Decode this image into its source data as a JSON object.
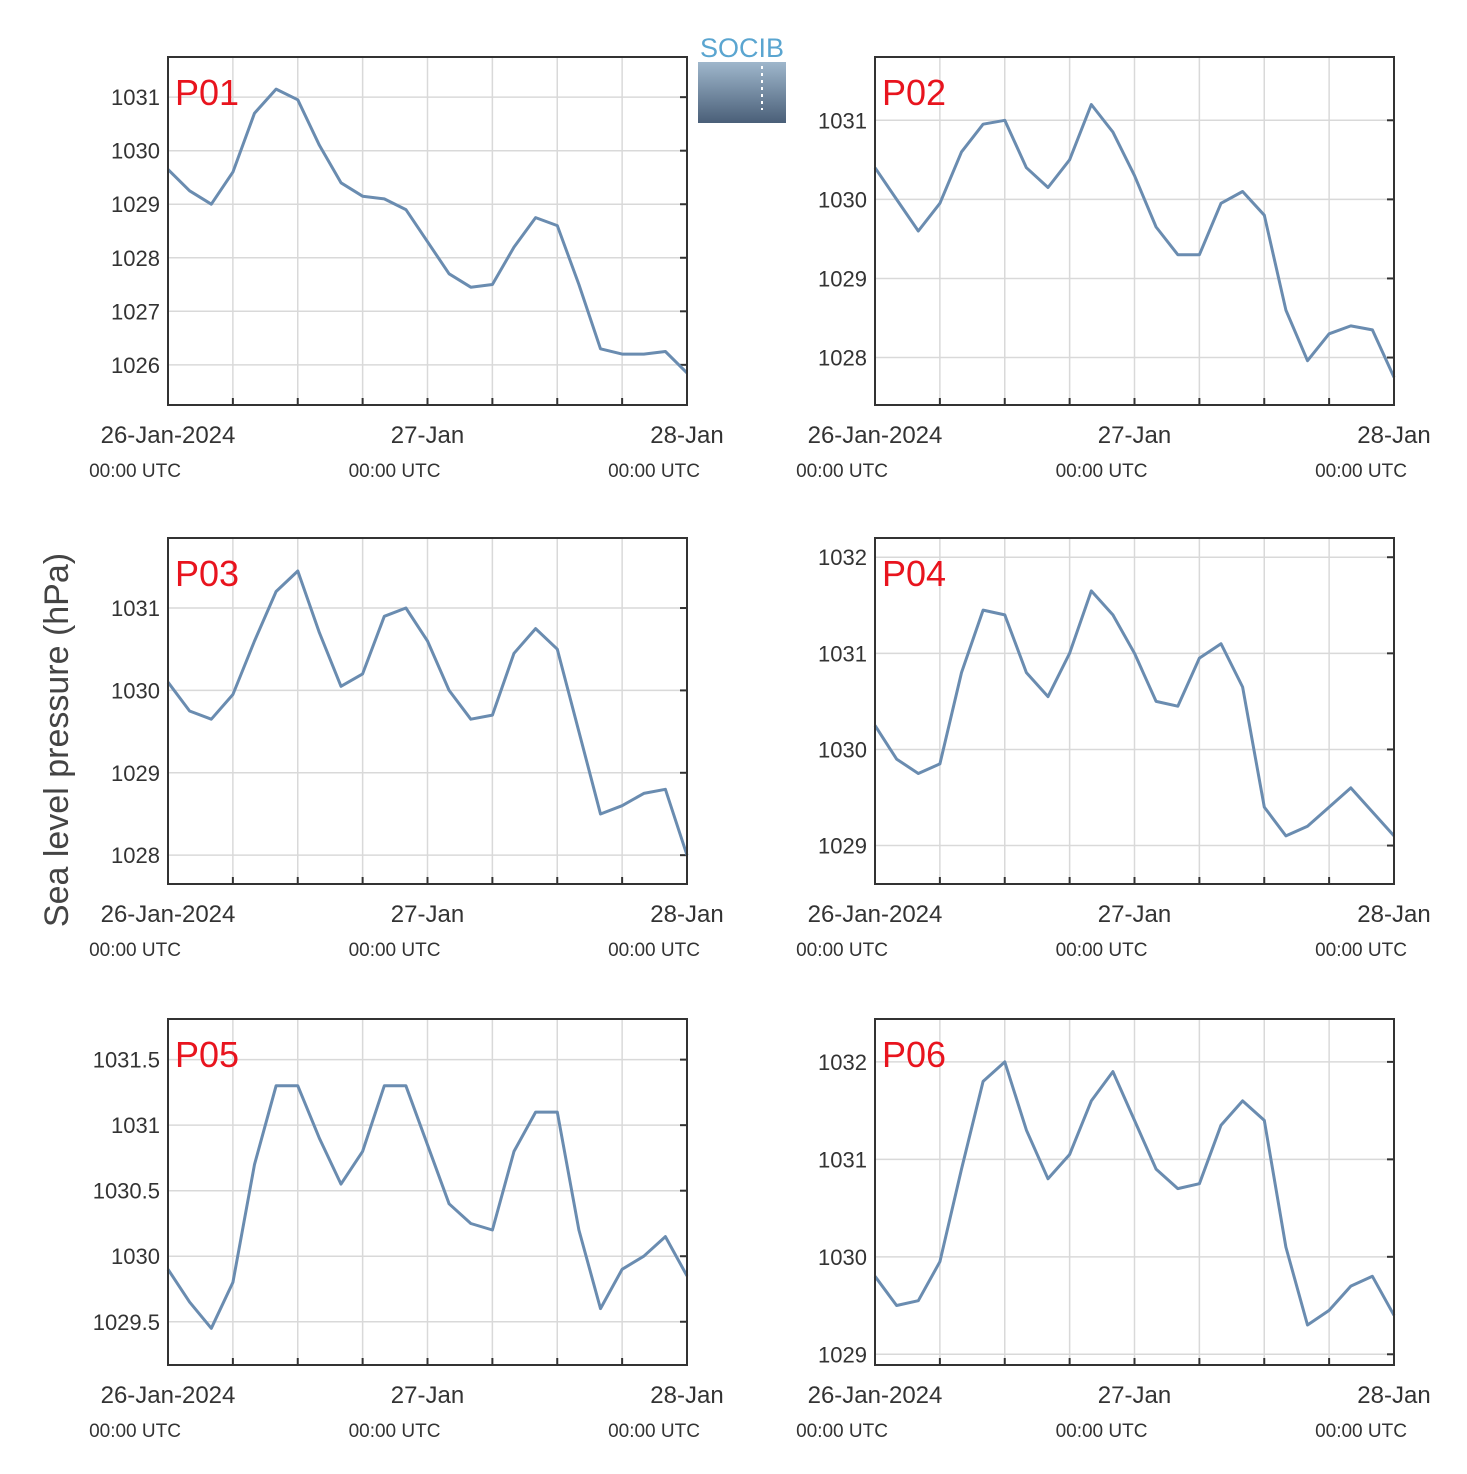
{
  "ylabel": "Sea level pressure (hPa)",
  "logo": "SOCIB",
  "chart_data": [
    {
      "type": "line",
      "title": "P01",
      "color": "#6a8cb0",
      "grid": true,
      "x": [
        "2024-01-26T00:00",
        "2024-01-26T02:00",
        "2024-01-26T04:00",
        "2024-01-26T06:00",
        "2024-01-26T08:00",
        "2024-01-26T10:00",
        "2024-01-26T12:00",
        "2024-01-26T14:00",
        "2024-01-26T16:00",
        "2024-01-26T18:00",
        "2024-01-26T20:00",
        "2024-01-26T22:00",
        "2024-01-27T00:00",
        "2024-01-27T02:00",
        "2024-01-27T04:00",
        "2024-01-27T06:00",
        "2024-01-27T08:00",
        "2024-01-27T10:00",
        "2024-01-27T12:00",
        "2024-01-27T14:00",
        "2024-01-27T16:00",
        "2024-01-27T18:00",
        "2024-01-27T20:00",
        "2024-01-27T22:00",
        "2024-01-28T00:00"
      ],
      "values": [
        1029.65,
        1029.25,
        1029.0,
        1029.6,
        1030.7,
        1031.15,
        1030.95,
        1030.1,
        1029.4,
        1029.15,
        1029.1,
        1028.9,
        1028.3,
        1027.7,
        1027.45,
        1027.5,
        1028.2,
        1028.75,
        1028.6,
        1027.5,
        1026.3,
        1026.2,
        1026.2,
        1026.25,
        1025.85
      ],
      "xlim": [
        "2024-01-26T00:00",
        "2024-01-28T00:00"
      ],
      "xticks": [
        {
          "value": "2024-01-26T00:00",
          "label": "26-Jan-2024"
        },
        {
          "value": "2024-01-27T00:00",
          "label": "27-Jan"
        },
        {
          "value": "2024-01-28T00:00",
          "label": "28-Jan"
        }
      ],
      "xtick_sublabel": "00:00 UTC",
      "xminorticks": [
        "2024-01-26T06:00",
        "2024-01-26T12:00",
        "2024-01-26T18:00",
        "2024-01-27T06:00",
        "2024-01-27T12:00",
        "2024-01-27T18:00"
      ],
      "ylim": [
        1025.25,
        1031.75
      ],
      "yticks": [
        1026,
        1027,
        1028,
        1029,
        1030,
        1031
      ]
    },
    {
      "type": "line",
      "title": "P02",
      "color": "#6a8cb0",
      "grid": true,
      "x": [
        "2024-01-26T00:00",
        "2024-01-26T02:00",
        "2024-01-26T04:00",
        "2024-01-26T06:00",
        "2024-01-26T08:00",
        "2024-01-26T10:00",
        "2024-01-26T12:00",
        "2024-01-26T14:00",
        "2024-01-26T16:00",
        "2024-01-26T18:00",
        "2024-01-26T20:00",
        "2024-01-26T22:00",
        "2024-01-27T00:00",
        "2024-01-27T02:00",
        "2024-01-27T04:00",
        "2024-01-27T06:00",
        "2024-01-27T08:00",
        "2024-01-27T10:00",
        "2024-01-27T12:00",
        "2024-01-27T14:00",
        "2024-01-27T16:00",
        "2024-01-27T18:00",
        "2024-01-27T20:00",
        "2024-01-27T22:00",
        "2024-01-28T00:00"
      ],
      "values": [
        1030.4,
        1030.0,
        1029.6,
        1029.95,
        1030.6,
        1030.95,
        1031.0,
        1030.4,
        1030.15,
        1030.5,
        1031.2,
        1030.85,
        1030.3,
        1029.65,
        1029.3,
        1029.3,
        1029.95,
        1030.1,
        1029.8,
        1028.6,
        1027.96,
        1028.3,
        1028.4,
        1028.35,
        1027.75
      ],
      "xlim": [
        "2024-01-26T00:00",
        "2024-01-28T00:00"
      ],
      "xticks": [
        {
          "value": "2024-01-26T00:00",
          "label": "26-Jan-2024"
        },
        {
          "value": "2024-01-27T00:00",
          "label": "27-Jan"
        },
        {
          "value": "2024-01-28T00:00",
          "label": "28-Jan"
        }
      ],
      "xtick_sublabel": "00:00 UTC",
      "xminorticks": [
        "2024-01-26T06:00",
        "2024-01-26T12:00",
        "2024-01-26T18:00",
        "2024-01-27T06:00",
        "2024-01-27T12:00",
        "2024-01-27T18:00"
      ],
      "ylim": [
        1027.4,
        1031.8
      ],
      "yticks": [
        1028,
        1029,
        1030,
        1031
      ]
    },
    {
      "type": "line",
      "title": "P03",
      "color": "#6a8cb0",
      "grid": true,
      "x": [
        "2024-01-26T00:00",
        "2024-01-26T02:00",
        "2024-01-26T04:00",
        "2024-01-26T06:00",
        "2024-01-26T08:00",
        "2024-01-26T10:00",
        "2024-01-26T12:00",
        "2024-01-26T14:00",
        "2024-01-26T16:00",
        "2024-01-26T18:00",
        "2024-01-26T20:00",
        "2024-01-26T22:00",
        "2024-01-27T00:00",
        "2024-01-27T02:00",
        "2024-01-27T04:00",
        "2024-01-27T06:00",
        "2024-01-27T08:00",
        "2024-01-27T10:00",
        "2024-01-27T12:00",
        "2024-01-27T14:00",
        "2024-01-27T16:00",
        "2024-01-27T18:00",
        "2024-01-27T20:00",
        "2024-01-27T22:00",
        "2024-01-28T00:00"
      ],
      "values": [
        1030.1,
        1029.75,
        1029.65,
        1029.95,
        1030.6,
        1031.2,
        1031.45,
        1030.7,
        1030.05,
        1030.2,
        1030.9,
        1031.0,
        1030.6,
        1030.0,
        1029.65,
        1029.7,
        1030.45,
        1030.75,
        1030.5,
        1029.5,
        1028.5,
        1028.6,
        1028.75,
        1028.8,
        1028.0
      ],
      "xlim": [
        "2024-01-26T00:00",
        "2024-01-28T00:00"
      ],
      "xticks": [
        {
          "value": "2024-01-26T00:00",
          "label": "26-Jan-2024"
        },
        {
          "value": "2024-01-27T00:00",
          "label": "27-Jan"
        },
        {
          "value": "2024-01-28T00:00",
          "label": "28-Jan"
        }
      ],
      "xtick_sublabel": "00:00 UTC",
      "xminorticks": [
        "2024-01-26T06:00",
        "2024-01-26T12:00",
        "2024-01-26T18:00",
        "2024-01-27T06:00",
        "2024-01-27T12:00",
        "2024-01-27T18:00"
      ],
      "ylim": [
        1027.65,
        1031.85
      ],
      "yticks": [
        1028,
        1029,
        1030,
        1031
      ]
    },
    {
      "type": "line",
      "title": "P04",
      "color": "#6a8cb0",
      "grid": true,
      "x": [
        "2024-01-26T00:00",
        "2024-01-26T02:00",
        "2024-01-26T04:00",
        "2024-01-26T06:00",
        "2024-01-26T08:00",
        "2024-01-26T10:00",
        "2024-01-26T12:00",
        "2024-01-26T14:00",
        "2024-01-26T16:00",
        "2024-01-26T18:00",
        "2024-01-26T20:00",
        "2024-01-26T22:00",
        "2024-01-27T00:00",
        "2024-01-27T02:00",
        "2024-01-27T04:00",
        "2024-01-27T06:00",
        "2024-01-27T08:00",
        "2024-01-27T10:00",
        "2024-01-27T12:00",
        "2024-01-27T14:00",
        "2024-01-27T16:00",
        "2024-01-27T18:00",
        "2024-01-27T20:00",
        "2024-01-27T22:00",
        "2024-01-28T00:00"
      ],
      "values": [
        1030.25,
        1029.9,
        1029.75,
        1029.85,
        1030.8,
        1031.45,
        1031.4,
        1030.8,
        1030.55,
        1031.0,
        1031.65,
        1031.4,
        1031.0,
        1030.5,
        1030.45,
        1030.95,
        1031.1,
        1030.65,
        1029.4,
        1029.1,
        1029.2,
        1029.4,
        1029.6,
        1029.35,
        1029.1
      ],
      "xlim": [
        "2024-01-26T00:00",
        "2024-01-28T00:00"
      ],
      "xticks": [
        {
          "value": "2024-01-26T00:00",
          "label": "26-Jan-2024"
        },
        {
          "value": "2024-01-27T00:00",
          "label": "27-Jan"
        },
        {
          "value": "2024-01-28T00:00",
          "label": "28-Jan"
        }
      ],
      "xtick_sublabel": "00:00 UTC",
      "xminorticks": [
        "2024-01-26T06:00",
        "2024-01-26T12:00",
        "2024-01-26T18:00",
        "2024-01-27T06:00",
        "2024-01-27T12:00",
        "2024-01-27T18:00"
      ],
      "ylim": [
        1028.6,
        1032.2
      ],
      "yticks": [
        1029,
        1030,
        1031,
        1032
      ]
    },
    {
      "type": "line",
      "title": "P05",
      "color": "#6a8cb0",
      "grid": true,
      "x": [
        "2024-01-26T00:00",
        "2024-01-26T02:00",
        "2024-01-26T04:00",
        "2024-01-26T06:00",
        "2024-01-26T08:00",
        "2024-01-26T10:00",
        "2024-01-26T12:00",
        "2024-01-26T14:00",
        "2024-01-26T16:00",
        "2024-01-26T18:00",
        "2024-01-26T20:00",
        "2024-01-26T22:00",
        "2024-01-27T00:00",
        "2024-01-27T02:00",
        "2024-01-27T04:00",
        "2024-01-27T06:00",
        "2024-01-27T08:00",
        "2024-01-27T10:00",
        "2024-01-27T12:00",
        "2024-01-27T14:00",
        "2024-01-27T16:00",
        "2024-01-27T18:00",
        "2024-01-27T20:00",
        "2024-01-27T22:00",
        "2024-01-28T00:00"
      ],
      "values": [
        1029.9,
        1029.65,
        1029.45,
        1029.8,
        1030.7,
        1031.3,
        1031.3,
        1030.9,
        1030.55,
        1030.8,
        1031.3,
        1031.3,
        1030.85,
        1030.4,
        1030.25,
        1030.2,
        1030.8,
        1031.1,
        1031.1,
        1030.2,
        1029.6,
        1029.9,
        1030.0,
        1030.15,
        1029.85
      ],
      "xlim": [
        "2024-01-26T00:00",
        "2024-01-28T00:00"
      ],
      "xticks": [
        {
          "value": "2024-01-26T00:00",
          "label": "26-Jan-2024"
        },
        {
          "value": "2024-01-27T00:00",
          "label": "27-Jan"
        },
        {
          "value": "2024-01-28T00:00",
          "label": "28-Jan"
        }
      ],
      "xtick_sublabel": "00:00 UTC",
      "xminorticks": [
        "2024-01-26T06:00",
        "2024-01-26T12:00",
        "2024-01-26T18:00",
        "2024-01-27T06:00",
        "2024-01-27T12:00",
        "2024-01-27T18:00"
      ],
      "ylim": [
        1029.17,
        1031.81
      ],
      "yticks": [
        1029.5,
        1030,
        1030.5,
        1031,
        1031.5
      ]
    },
    {
      "type": "line",
      "title": "P06",
      "color": "#6a8cb0",
      "grid": true,
      "x": [
        "2024-01-26T00:00",
        "2024-01-26T02:00",
        "2024-01-26T04:00",
        "2024-01-26T06:00",
        "2024-01-26T08:00",
        "2024-01-26T10:00",
        "2024-01-26T12:00",
        "2024-01-26T14:00",
        "2024-01-26T16:00",
        "2024-01-26T18:00",
        "2024-01-26T20:00",
        "2024-01-26T22:00",
        "2024-01-27T00:00",
        "2024-01-27T02:00",
        "2024-01-27T04:00",
        "2024-01-27T06:00",
        "2024-01-27T08:00",
        "2024-01-27T10:00",
        "2024-01-27T12:00",
        "2024-01-27T14:00",
        "2024-01-27T16:00",
        "2024-01-27T18:00",
        "2024-01-27T20:00",
        "2024-01-27T22:00",
        "2024-01-28T00:00"
      ],
      "values": [
        1029.8,
        1029.5,
        1029.55,
        1029.95,
        1030.9,
        1031.8,
        1032.0,
        1031.3,
        1030.8,
        1031.05,
        1031.6,
        1031.9,
        1031.4,
        1030.9,
        1030.7,
        1030.75,
        1031.35,
        1031.6,
        1031.4,
        1030.1,
        1029.3,
        1029.45,
        1029.7,
        1029.8,
        1029.4
      ],
      "xlim": [
        "2024-01-26T00:00",
        "2024-01-28T00:00"
      ],
      "xticks": [
        {
          "value": "2024-01-26T00:00",
          "label": "26-Jan-2024"
        },
        {
          "value": "2024-01-27T00:00",
          "label": "27-Jan"
        },
        {
          "value": "2024-01-28T00:00",
          "label": "28-Jan"
        }
      ],
      "xtick_sublabel": "00:00 UTC",
      "xminorticks": [
        "2024-01-26T06:00",
        "2024-01-26T12:00",
        "2024-01-26T18:00",
        "2024-01-27T06:00",
        "2024-01-27T12:00",
        "2024-01-27T18:00"
      ],
      "ylim": [
        1028.89,
        1032.44
      ],
      "yticks": [
        1029,
        1030,
        1031,
        1032
      ]
    }
  ]
}
